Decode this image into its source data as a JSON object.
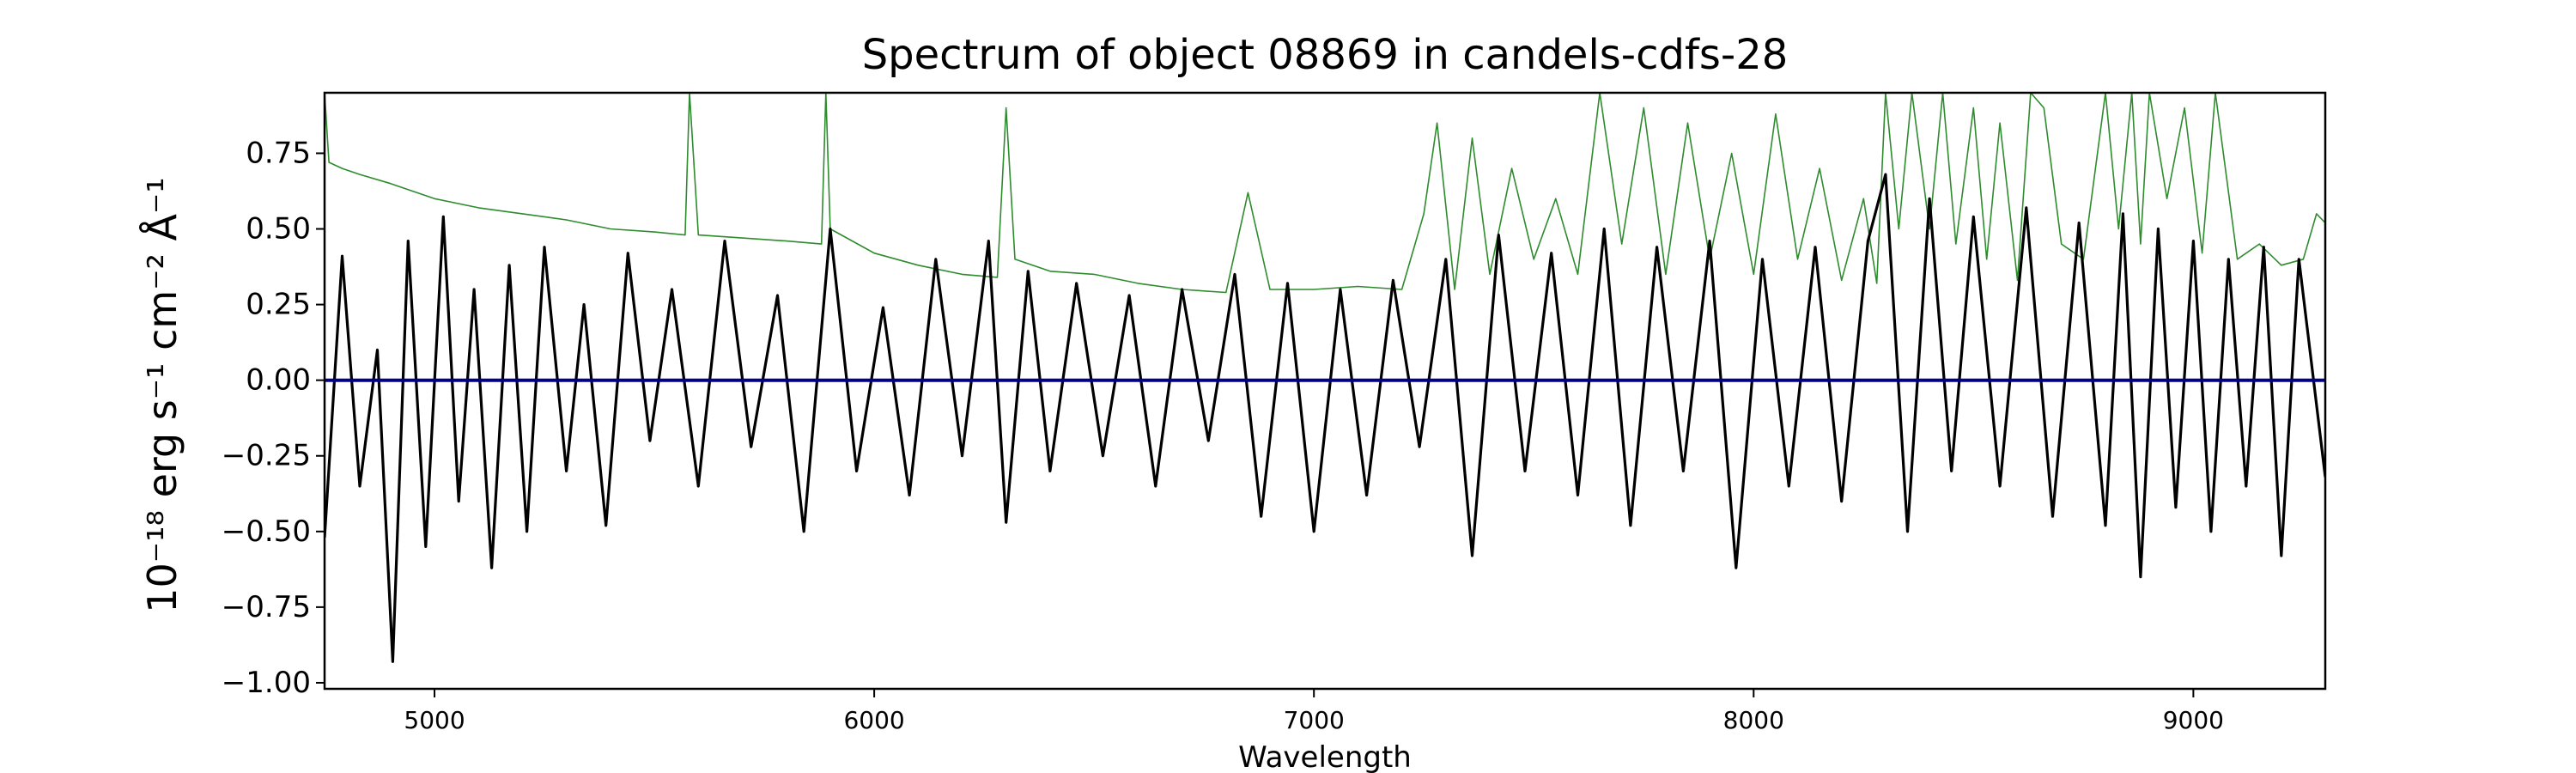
{
  "chart_data": {
    "type": "line",
    "title": "Spectrum of object 08869 in candels-cdfs-28",
    "xlabel": "Wavelength",
    "ylabel": "10⁻¹⁸ erg s⁻¹ cm⁻² Å⁻¹",
    "xlim": [
      4750,
      9300
    ],
    "ylim": [
      -1.02,
      0.95
    ],
    "xticks": [
      5000,
      6000,
      7000,
      8000,
      9000
    ],
    "xtick_labels": [
      "5000",
      "6000",
      "7000",
      "8000",
      "9000"
    ],
    "yticks": [
      -1.0,
      -0.75,
      -0.5,
      -0.25,
      0.0,
      0.25,
      0.5,
      0.75
    ],
    "ytick_labels": [
      "−1.00",
      "−0.75",
      "−0.50",
      "−0.25",
      "0.00",
      "0.25",
      "0.50",
      "0.75"
    ],
    "grid": false,
    "legend": "none",
    "series": [
      {
        "role": "flux",
        "color": "#000000",
        "x": [
          4750,
          4790,
          4830,
          4870,
          4905,
          4940,
          4980,
          5020,
          5055,
          5090,
          5130,
          5170,
          5210,
          5250,
          5300,
          5340,
          5390,
          5440,
          5490,
          5540,
          5600,
          5660,
          5720,
          5780,
          5840,
          5900,
          5960,
          6020,
          6080,
          6140,
          6200,
          6260,
          6300,
          6350,
          6400,
          6460,
          6520,
          6580,
          6640,
          6700,
          6760,
          6820,
          6880,
          6940,
          7000,
          7060,
          7120,
          7180,
          7240,
          7300,
          7360,
          7420,
          7480,
          7540,
          7600,
          7660,
          7720,
          7780,
          7840,
          7900,
          7960,
          8020,
          8080,
          8140,
          8200,
          8260,
          8300,
          8350,
          8400,
          8450,
          8500,
          8560,
          8620,
          8680,
          8740,
          8800,
          8840,
          8880,
          8920,
          8960,
          9000,
          9040,
          9080,
          9120,
          9160,
          9200,
          9240,
          9300
        ],
        "y": [
          -0.52,
          0.41,
          -0.35,
          0.1,
          -0.93,
          0.46,
          -0.55,
          0.54,
          -0.4,
          0.3,
          -0.62,
          0.38,
          -0.5,
          0.44,
          -0.3,
          0.25,
          -0.48,
          0.42,
          -0.2,
          0.3,
          -0.35,
          0.46,
          -0.22,
          0.28,
          -0.5,
          0.5,
          -0.3,
          0.24,
          -0.38,
          0.4,
          -0.25,
          0.46,
          -0.47,
          0.36,
          -0.3,
          0.32,
          -0.25,
          0.28,
          -0.35,
          0.3,
          -0.2,
          0.35,
          -0.45,
          0.32,
          -0.5,
          0.3,
          -0.38,
          0.33,
          -0.22,
          0.4,
          -0.58,
          0.48,
          -0.3,
          0.42,
          -0.38,
          0.5,
          -0.48,
          0.44,
          -0.3,
          0.46,
          -0.62,
          0.4,
          -0.35,
          0.44,
          -0.4,
          0.46,
          0.68,
          -0.5,
          0.6,
          -0.3,
          0.54,
          -0.35,
          0.57,
          -0.45,
          0.52,
          -0.48,
          0.55,
          -0.65,
          0.5,
          -0.42,
          0.46,
          -0.5,
          0.4,
          -0.35,
          0.44,
          -0.58,
          0.4,
          -0.32
        ]
      },
      {
        "role": "model",
        "color": "#00008B",
        "x": [
          4750,
          9300
        ],
        "y": [
          0.0,
          0.0
        ]
      },
      {
        "role": "error",
        "color": "#2E8B2E",
        "x": [
          4750,
          4760,
          4790,
          4830,
          4900,
          5000,
          5100,
          5200,
          5300,
          5400,
          5500,
          5570,
          5580,
          5600,
          5700,
          5800,
          5880,
          5890,
          5900,
          6000,
          6100,
          6200,
          6280,
          6300,
          6320,
          6400,
          6500,
          6600,
          6700,
          6800,
          6850,
          6900,
          7000,
          7100,
          7200,
          7250,
          7280,
          7320,
          7360,
          7400,
          7450,
          7500,
          7550,
          7600,
          7650,
          7700,
          7750,
          7800,
          7850,
          7900,
          7950,
          8000,
          8050,
          8100,
          8150,
          8200,
          8250,
          8280,
          8300,
          8330,
          8360,
          8400,
          8430,
          8460,
          8500,
          8530,
          8560,
          8600,
          8630,
          8660,
          8700,
          8750,
          8800,
          8830,
          8860,
          8880,
          8900,
          8940,
          8980,
          9020,
          9050,
          9100,
          9150,
          9200,
          9250,
          9280,
          9300
        ],
        "y": [
          0.95,
          0.72,
          0.7,
          0.68,
          0.65,
          0.6,
          0.57,
          0.55,
          0.53,
          0.5,
          0.49,
          0.48,
          0.95,
          0.48,
          0.47,
          0.46,
          0.45,
          0.95,
          0.5,
          0.42,
          0.38,
          0.35,
          0.34,
          0.9,
          0.4,
          0.36,
          0.35,
          0.32,
          0.3,
          0.29,
          0.62,
          0.3,
          0.3,
          0.31,
          0.3,
          0.55,
          0.85,
          0.3,
          0.8,
          0.35,
          0.7,
          0.4,
          0.6,
          0.35,
          0.95,
          0.45,
          0.9,
          0.35,
          0.85,
          0.4,
          0.75,
          0.35,
          0.88,
          0.4,
          0.7,
          0.33,
          0.6,
          0.32,
          0.95,
          0.5,
          0.95,
          0.5,
          0.95,
          0.45,
          0.9,
          0.4,
          0.85,
          0.33,
          0.95,
          0.9,
          0.45,
          0.4,
          0.95,
          0.5,
          0.95,
          0.45,
          0.95,
          0.6,
          0.9,
          0.42,
          0.95,
          0.4,
          0.45,
          0.38,
          0.4,
          0.55,
          0.52
        ]
      }
    ]
  }
}
